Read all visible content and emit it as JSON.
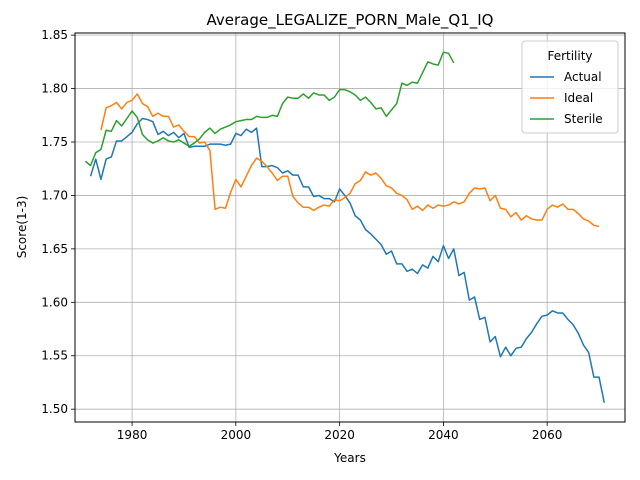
{
  "chart_data": {
    "type": "line",
    "title": "Average_LEGALIZE_PORN_Male_Q1_IQ",
    "xlabel": "Years",
    "ylabel": "Score(1-3)",
    "xlim": [
      1969,
      2075
    ],
    "ylim": [
      1.488,
      1.852
    ],
    "xticks": [
      1980,
      2000,
      2020,
      2040,
      2060
    ],
    "yticks": [
      1.5,
      1.55,
      1.6,
      1.65,
      1.7,
      1.75,
      1.8,
      1.85
    ],
    "ytick_labels": [
      "1.50",
      "1.55",
      "1.60",
      "1.65",
      "1.70",
      "1.75",
      "1.80",
      "1.85"
    ],
    "grid": true,
    "legend": {
      "title": "Fertility",
      "position": "top-right"
    },
    "series": [
      {
        "name": "Actual",
        "color": "#1f77b4",
        "x_start": 1972,
        "values": [
          1.718,
          1.734,
          1.715,
          1.734,
          1.736,
          1.751,
          1.751,
          1.755,
          1.759,
          1.767,
          1.772,
          1.771,
          1.769,
          1.757,
          1.76,
          1.756,
          1.759,
          1.754,
          1.758,
          1.745,
          1.746,
          1.746,
          1.746,
          1.748,
          1.748,
          1.748,
          1.747,
          1.748,
          1.758,
          1.756,
          1.762,
          1.759,
          1.763,
          1.727,
          1.727,
          1.728,
          1.726,
          1.721,
          1.723,
          1.719,
          1.719,
          1.708,
          1.708,
          1.699,
          1.7,
          1.697,
          1.697,
          1.694,
          1.706,
          1.7,
          1.693,
          1.681,
          1.677,
          1.668,
          1.664,
          1.659,
          1.654,
          1.645,
          1.648,
          1.636,
          1.636,
          1.629,
          1.631,
          1.627,
          1.635,
          1.632,
          1.643,
          1.638,
          1.653,
          1.641,
          1.65,
          1.625,
          1.628,
          1.602,
          1.605,
          1.584,
          1.586,
          1.563,
          1.568,
          1.549,
          1.558,
          1.55,
          1.557,
          1.558,
          1.566,
          1.572,
          1.58,
          1.587,
          1.588,
          1.592,
          1.59,
          1.59,
          1.584,
          1.579,
          1.571,
          1.56,
          1.553,
          1.53,
          1.53,
          1.506
        ]
      },
      {
        "name": "Ideal",
        "color": "#ff7f0e",
        "x_start": 1974,
        "values": [
          1.761,
          1.782,
          1.784,
          1.787,
          1.781,
          1.787,
          1.789,
          1.795,
          1.786,
          1.783,
          1.774,
          1.777,
          1.774,
          1.774,
          1.764,
          1.766,
          1.76,
          1.755,
          1.755,
          1.749,
          1.75,
          1.742,
          1.687,
          1.689,
          1.688,
          1.703,
          1.715,
          1.708,
          1.718,
          1.728,
          1.735,
          1.732,
          1.727,
          1.721,
          1.714,
          1.718,
          1.718,
          1.699,
          1.693,
          1.689,
          1.689,
          1.686,
          1.689,
          1.691,
          1.69,
          1.696,
          1.695,
          1.698,
          1.702,
          1.711,
          1.714,
          1.722,
          1.719,
          1.721,
          1.716,
          1.709,
          1.707,
          1.702,
          1.7,
          1.696,
          1.687,
          1.69,
          1.686,
          1.691,
          1.688,
          1.691,
          1.69,
          1.691,
          1.694,
          1.692,
          1.694,
          1.702,
          1.707,
          1.706,
          1.707,
          1.695,
          1.7,
          1.688,
          1.687,
          1.68,
          1.684,
          1.677,
          1.681,
          1.678,
          1.677,
          1.677,
          1.687,
          1.691,
          1.689,
          1.692,
          1.687,
          1.687,
          1.683,
          1.678,
          1.676,
          1.672,
          1.671
        ]
      },
      {
        "name": "Sterile",
        "color": "#2ca02c",
        "x_start": 1971,
        "values": [
          1.732,
          1.728,
          1.74,
          1.743,
          1.761,
          1.76,
          1.77,
          1.765,
          1.772,
          1.779,
          1.773,
          1.757,
          1.752,
          1.749,
          1.751,
          1.754,
          1.751,
          1.75,
          1.752,
          1.749,
          1.746,
          1.749,
          1.753,
          1.759,
          1.763,
          1.758,
          1.762,
          1.764,
          1.766,
          1.769,
          1.77,
          1.771,
          1.771,
          1.774,
          1.773,
          1.773,
          1.775,
          1.774,
          1.786,
          1.792,
          1.791,
          1.791,
          1.795,
          1.791,
          1.796,
          1.794,
          1.794,
          1.789,
          1.792,
          1.799,
          1.799,
          1.797,
          1.794,
          1.789,
          1.792,
          1.787,
          1.781,
          1.782,
          1.774,
          1.78,
          1.786,
          1.805,
          1.803,
          1.806,
          1.805,
          1.815,
          1.825,
          1.823,
          1.822,
          1.834,
          1.833,
          1.824
        ]
      }
    ]
  }
}
